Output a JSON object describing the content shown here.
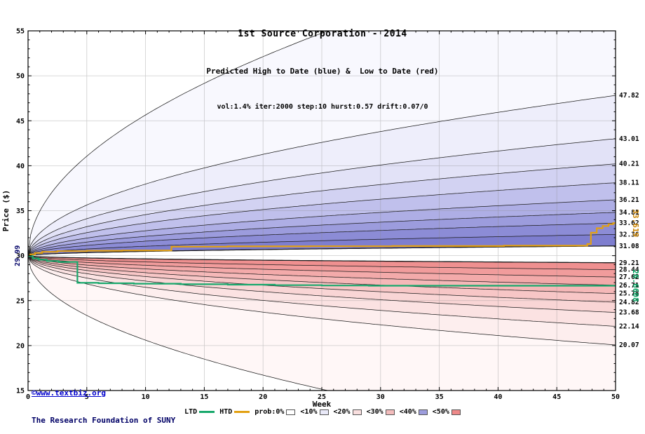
{
  "header": {
    "title": "1st Source Corporation - 2014",
    "subtitle": "Predicted High to Date (blue) &  Low to Date (red)",
    "params": "vol:1.4% iter:2000 step:10 hurst:0.57 drift:0.07/0"
  },
  "watermark": {
    "line1": "©www.textbiz.org",
    "line2": "The Research Foundation of SUNY"
  },
  "footer_legend": {
    "ltd_label": "LTD",
    "htd_label": "HTD",
    "ltd_color": "#18a86c",
    "htd_color": "#e2a012",
    "prob_items": [
      {
        "label": "prob:0%",
        "color": "#ffffff"
      },
      {
        "label": "<10%",
        "color": "#e9e9f8"
      },
      {
        "label": "<20%",
        "color": "#f9dfdf"
      },
      {
        "label": "<30%",
        "color": "#f3bcbc"
      },
      {
        "label": "<40%",
        "color": "#9d9ddd"
      },
      {
        "label": "<50%",
        "color": "#ee8989"
      }
    ]
  },
  "chart_data": {
    "type": "fan-line",
    "title": "1st Source Corporation - 2014",
    "xlabel": "Week",
    "ylabel": "Price ($)",
    "xlim": [
      0,
      50
    ],
    "ylim": [
      15,
      55
    ],
    "xticks": [
      0,
      5,
      10,
      15,
      20,
      25,
      30,
      35,
      40,
      45,
      50
    ],
    "yticks": [
      15,
      20,
      25,
      30,
      35,
      40,
      45,
      50,
      55
    ],
    "grid": true,
    "legend_position": "bottom",
    "start_price": 29.99,
    "start_label": "29.99",
    "curve_exponent": 0.5,
    "high_band_ends": [
      31.08,
      32.36,
      33.62,
      34.81,
      36.21,
      38.11,
      40.21,
      43.01,
      47.82,
      65.0
    ],
    "low_band_ends": [
      29.21,
      28.44,
      27.62,
      26.71,
      25.78,
      24.82,
      23.68,
      22.14,
      20.07,
      9.0
    ],
    "high_band_colors": [
      "#7e7ecf",
      "#8c8cd6",
      "#9c9cdd",
      "#aeaee5",
      "#c0c0ec",
      "#d2d2f2",
      "#e2e2f7",
      "#eeeefb",
      "#f8f8fe"
    ],
    "low_band_colors": [
      "#ef9090",
      "#f19c9c",
      "#f3aaaa",
      "#f5b8b8",
      "#f7c6c6",
      "#f9d5d5",
      "#fbe2e2",
      "#fdeeee",
      "#fff7f7"
    ],
    "right_labels_high": [
      "47.82",
      "43.01",
      "40.21",
      "38.11",
      "36.21",
      "34.81",
      "33.62",
      "32.36",
      "31.08"
    ],
    "right_labels_low": [
      "29.21",
      "28.44",
      "27.62",
      "26.71",
      "25.78",
      "24.82",
      "23.68",
      "22.14",
      "20.07"
    ],
    "htd_final_label": "33.619",
    "htd_final_value": 33.619,
    "ltd_final_label": "26.6608",
    "ltd_final_value": 26.6608,
    "htd_line": {
      "name": "HTD",
      "color": "#e2a012",
      "points": [
        [
          0,
          29.99
        ],
        [
          0.2,
          29.99
        ],
        [
          0.2,
          30.15
        ],
        [
          0.6,
          30.15
        ],
        [
          0.6,
          30.3
        ],
        [
          1.2,
          30.3
        ],
        [
          1.2,
          30.42
        ],
        [
          2.5,
          30.42
        ],
        [
          2.5,
          30.5
        ],
        [
          5,
          30.5
        ],
        [
          5,
          30.55
        ],
        [
          8,
          30.55
        ],
        [
          8,
          30.58
        ],
        [
          12.2,
          30.58
        ],
        [
          12.2,
          31.0
        ],
        [
          17,
          31.0
        ],
        [
          17,
          31.03
        ],
        [
          24,
          31.03
        ],
        [
          24,
          31.05
        ],
        [
          31,
          31.05
        ],
        [
          31,
          31.07
        ],
        [
          40.5,
          31.07
        ],
        [
          40.5,
          31.12
        ],
        [
          47.6,
          31.12
        ],
        [
          47.6,
          31.3
        ],
        [
          47.9,
          31.3
        ],
        [
          47.9,
          32.55
        ],
        [
          48.4,
          32.55
        ],
        [
          48.4,
          33.05
        ],
        [
          48.9,
          33.05
        ],
        [
          48.9,
          33.3
        ],
        [
          49.4,
          33.3
        ],
        [
          49.4,
          33.5
        ],
        [
          49.8,
          33.5
        ],
        [
          49.8,
          33.62
        ],
        [
          50,
          33.62
        ]
      ]
    },
    "ltd_line": {
      "name": "LTD",
      "color": "#18a86c",
      "points": [
        [
          0,
          29.95
        ],
        [
          0.4,
          29.95
        ],
        [
          0.4,
          29.7
        ],
        [
          0.9,
          29.7
        ],
        [
          0.9,
          29.55
        ],
        [
          1.6,
          29.55
        ],
        [
          1.6,
          29.4
        ],
        [
          2.6,
          29.4
        ],
        [
          2.6,
          29.3
        ],
        [
          4.2,
          29.3
        ],
        [
          4.2,
          26.98
        ],
        [
          6,
          26.98
        ],
        [
          6,
          26.93
        ],
        [
          9,
          26.93
        ],
        [
          9,
          26.88
        ],
        [
          13,
          26.88
        ],
        [
          13,
          26.82
        ],
        [
          17,
          26.82
        ],
        [
          17,
          26.77
        ],
        [
          21,
          26.77
        ],
        [
          21,
          26.72
        ],
        [
          25,
          26.72
        ],
        [
          25,
          26.68
        ],
        [
          29,
          26.68
        ],
        [
          29,
          26.66
        ],
        [
          50,
          26.66
        ]
      ]
    },
    "colors": {
      "grid": "#8a8a8a",
      "boundary": "#1b1b1b",
      "frame": "#000000",
      "start_label": "#000066",
      "htd_label": "#cc8400",
      "ltd_label": "#00a25f"
    }
  }
}
